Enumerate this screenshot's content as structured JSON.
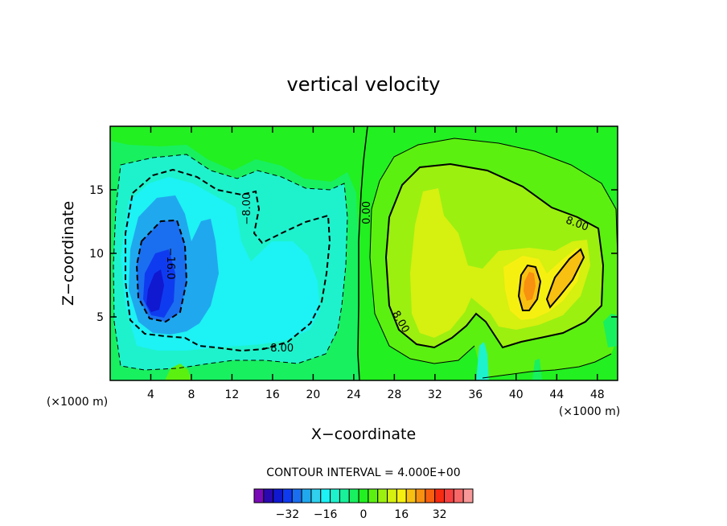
{
  "chart_data": {
    "type": "heatmap",
    "subtype": "filled-contour",
    "title": "vertical velocity",
    "xlabel": "X−coordinate",
    "ylabel": "Z−coordinate",
    "x_unit_label": "(×1000 m)",
    "y_unit_label": "(×1000 m)",
    "xlim": [
      0,
      50
    ],
    "ylim": [
      0,
      20
    ],
    "x_ticks": [
      4,
      8,
      12,
      16,
      20,
      24,
      28,
      32,
      36,
      40,
      44,
      48
    ],
    "y_ticks": [
      5,
      10,
      15
    ],
    "grid": false,
    "contour_interval_text": "CONTOUR INTERVAL = 4.000E+00",
    "contour_interval": 4.0,
    "contour_labels": [
      {
        "text": "−16.0",
        "x": 5.9,
        "y": 9.2
      },
      {
        "text": "−8.00",
        "x": 13.5,
        "y": 13.5
      },
      {
        "text": "−8.00",
        "x": 16.5,
        "y": 2.5
      },
      {
        "text": "0.00",
        "x": 25.3,
        "y": 13.2
      },
      {
        "text": "8.00",
        "x": 28.6,
        "y": 4.6
      },
      {
        "text": "8.00",
        "x": 46.0,
        "y": 12.3
      }
    ],
    "features": [
      {
        "name": "downdraft core",
        "x": 4.5,
        "y": 7.0,
        "min_value": -28
      },
      {
        "name": "updraft core",
        "x": 41.0,
        "y": 7.5,
        "max_value": 20
      }
    ],
    "colorbar": {
      "tick_labels": [
        "−32",
        "−16",
        "0",
        "16",
        "32"
      ],
      "tick_values": [
        -32,
        -16,
        0,
        16,
        32
      ],
      "levels": [
        -36,
        -32,
        -28,
        -24,
        -20,
        -16,
        -12,
        -8,
        -4,
        0,
        4,
        8,
        12,
        16,
        20,
        24,
        28,
        32,
        36
      ],
      "colors": [
        "#7a0ab8",
        "#2a08b0",
        "#1018d0",
        "#0f3bf0",
        "#1a6ff0",
        "#20a8ee",
        "#30d0ee",
        "#1df2f4",
        "#1ef2cc",
        "#18f09a",
        "#18f060",
        "#22f020",
        "#5cf010",
        "#9bf010",
        "#d6f010",
        "#f6f010",
        "#f8c010",
        "#f89010",
        "#f86010",
        "#f82a10",
        "#f84040",
        "#f86868",
        "#f89898"
      ]
    }
  }
}
